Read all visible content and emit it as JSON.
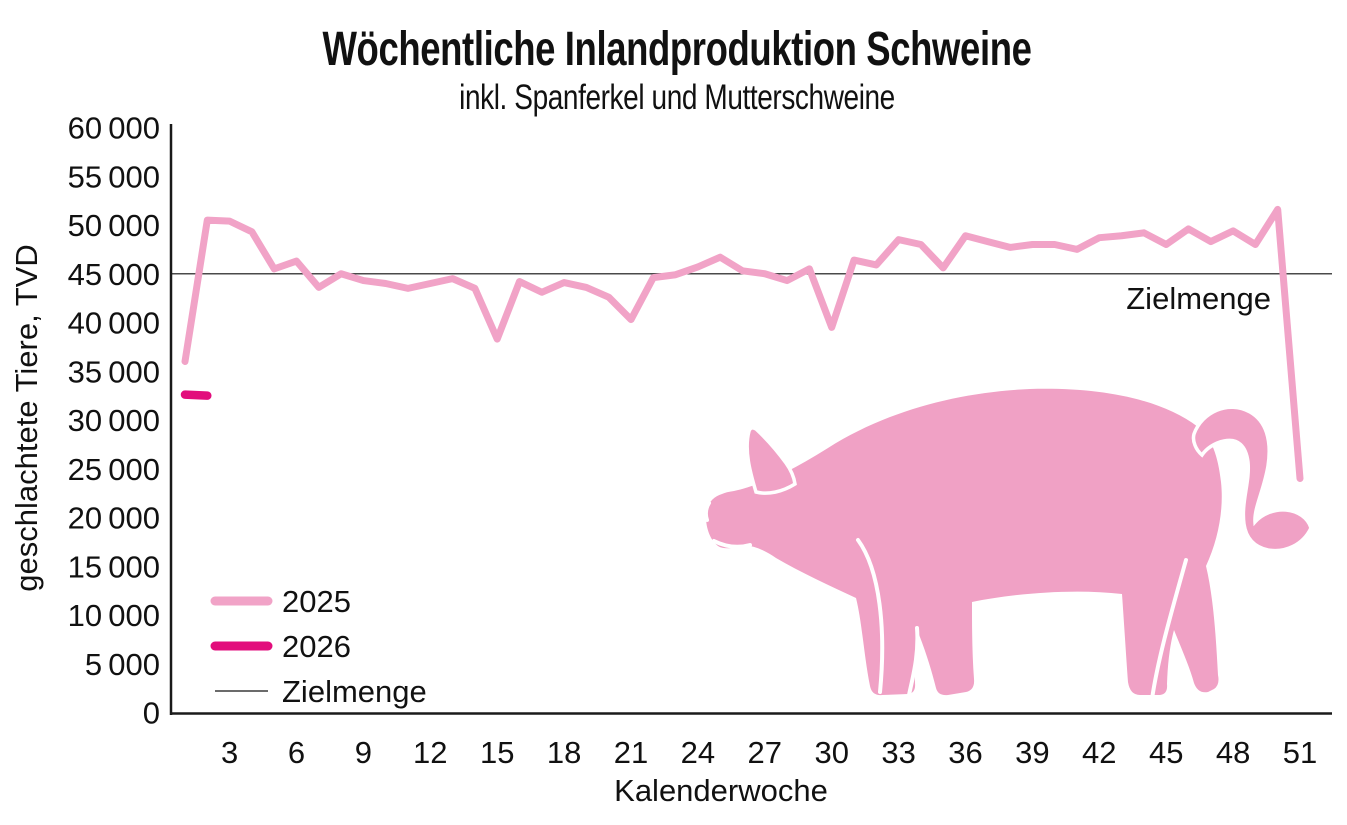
{
  "chart_data": {
    "type": "line",
    "title": "Wöchentliche Inlandproduktion Schweine",
    "subtitle": "inkl. Spanferkel und Mutterschweine",
    "xlabel": "Kalenderwoche",
    "ylabel": "geschlachtete Tiere, TVD",
    "xlim": [
      1,
      52
    ],
    "ylim": [
      0,
      60000
    ],
    "ytick_step": 5000,
    "x_ticks": [
      3,
      6,
      9,
      12,
      15,
      18,
      21,
      24,
      27,
      30,
      33,
      36,
      39,
      42,
      45,
      48,
      51
    ],
    "grid": false,
    "legend_position": "inside-lower-left",
    "target_line": {
      "label": "Zielmenge",
      "value": 45000,
      "color": "#4a4a4a"
    },
    "series": [
      {
        "name": "2025",
        "color": "#f1a3c7",
        "line_width": 7,
        "weeks": [
          1,
          2,
          3,
          4,
          5,
          6,
          7,
          8,
          9,
          10,
          11,
          12,
          13,
          14,
          15,
          16,
          17,
          18,
          19,
          20,
          21,
          22,
          23,
          24,
          25,
          26,
          27,
          28,
          29,
          30,
          31,
          32,
          33,
          34,
          35,
          36,
          37,
          38,
          39,
          40,
          41,
          42,
          43,
          44,
          45,
          46,
          47,
          48,
          49,
          50,
          51
        ],
        "values": [
          36000,
          50500,
          50400,
          49300,
          45500,
          46300,
          43600,
          45000,
          44300,
          44000,
          43500,
          44000,
          44500,
          43500,
          38300,
          44200,
          43100,
          44100,
          43600,
          42600,
          40300,
          44600,
          44900,
          45700,
          46700,
          45300,
          45000,
          44300,
          45500,
          39500,
          46400,
          45900,
          48500,
          48000,
          45600,
          48900,
          48300,
          47700,
          48000,
          48000,
          47500,
          48700,
          48900,
          49200,
          48000,
          49600,
          48300,
          49400,
          48000,
          51600,
          24000
        ]
      },
      {
        "name": "2026",
        "color": "#e20d7c",
        "line_width": 8.5,
        "weeks": [
          1,
          2
        ],
        "values": [
          32600,
          32500
        ]
      }
    ]
  },
  "legend": {
    "entries": [
      {
        "label": "2025",
        "color": "#f1a3c7",
        "line_width": 9
      },
      {
        "label": "2026",
        "color": "#e20d7c",
        "line_width": 9
      },
      {
        "label": "Zielmenge",
        "color": "#6b6b6b",
        "line_width": 2
      }
    ]
  },
  "decor": {
    "pig_color": "#f0a1c5"
  }
}
